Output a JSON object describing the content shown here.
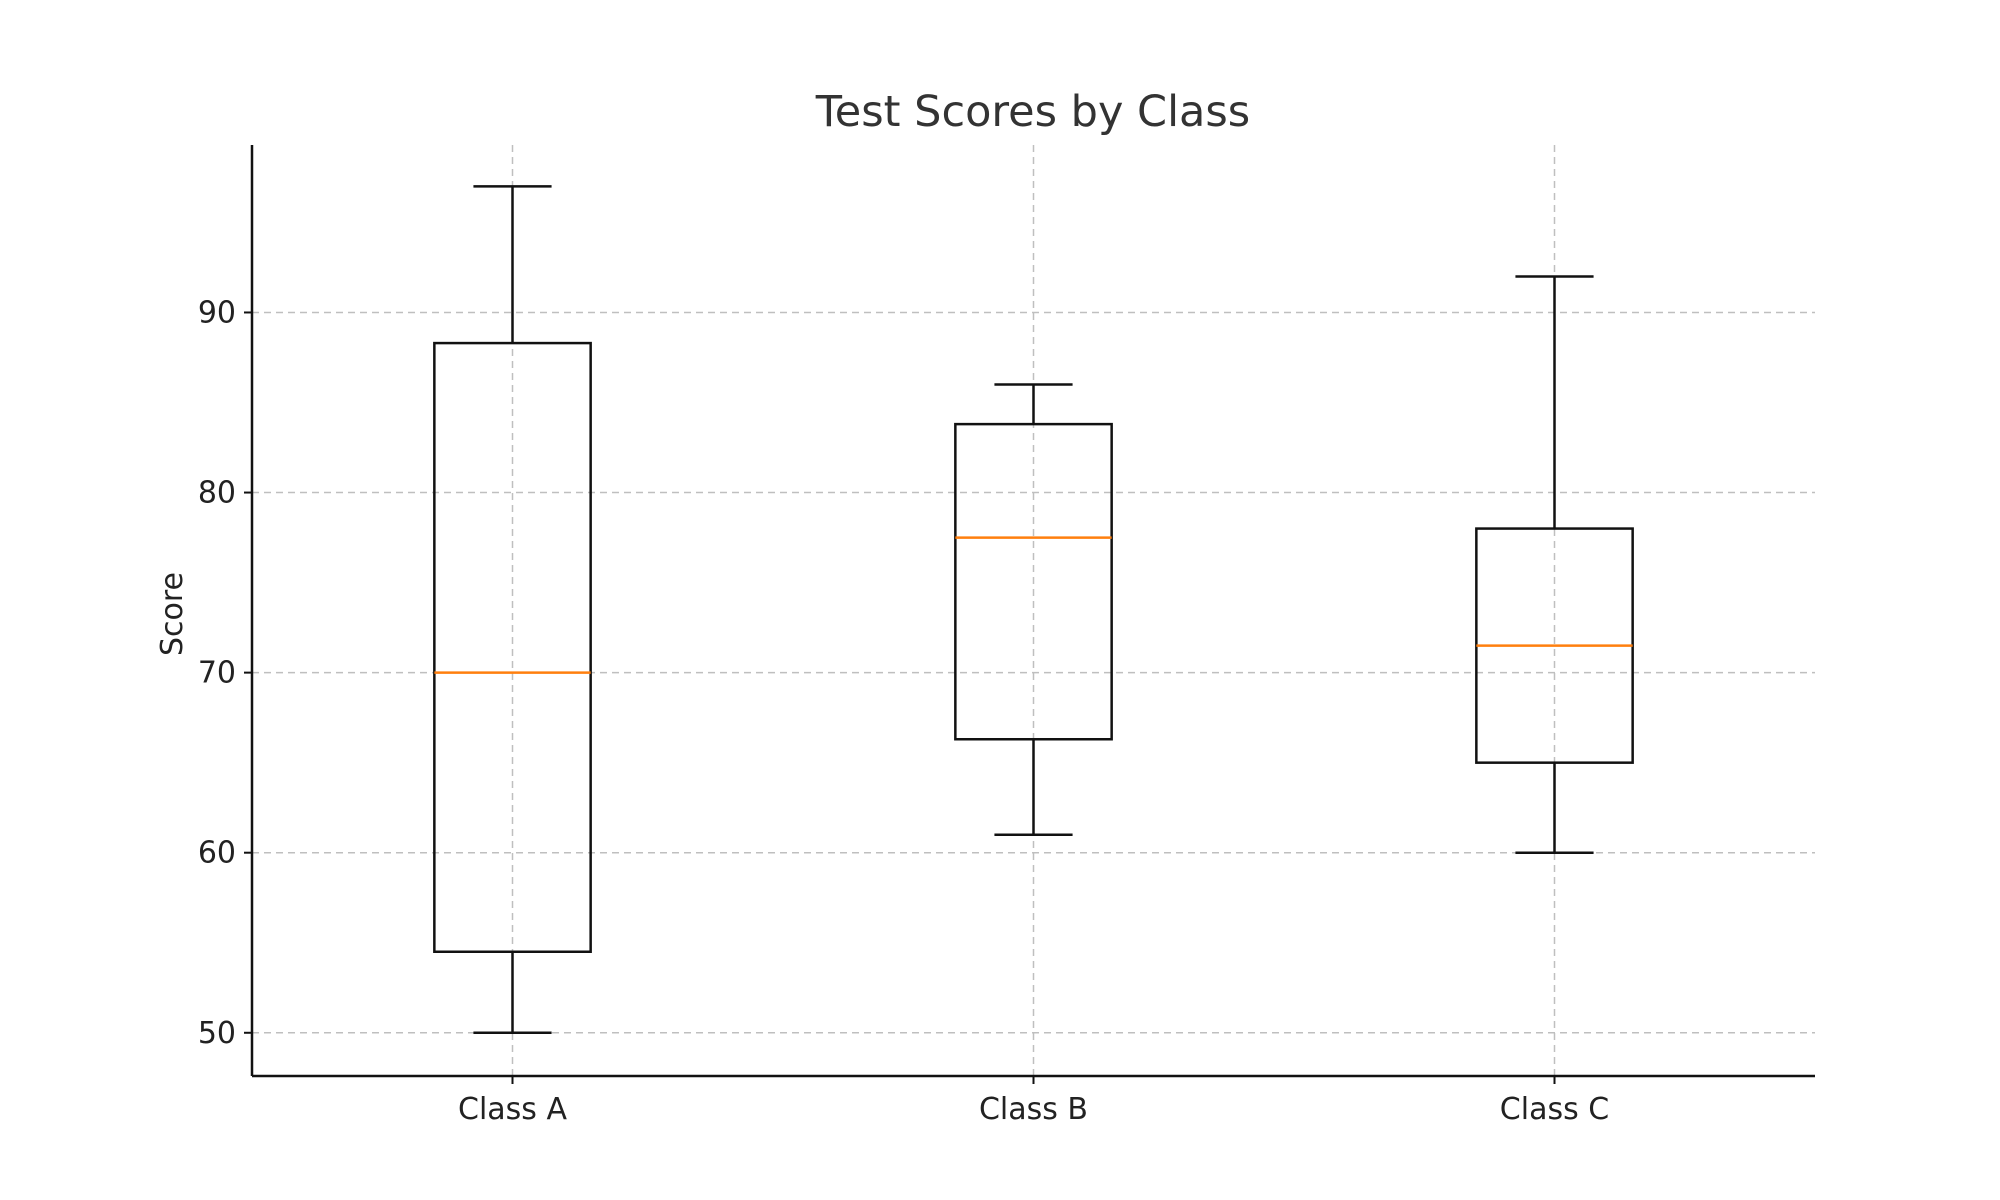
{
  "chart_data": {
    "type": "box",
    "title": "Test Scores by Class",
    "xlabel": "",
    "ylabel": "Score",
    "categories": [
      "Class A",
      "Class B",
      "Class C"
    ],
    "ylim": [
      47.6,
      99.3
    ],
    "yticks": [
      50,
      60,
      70,
      80,
      90
    ],
    "grid": true,
    "colors": {
      "box": "#111111",
      "median": "#ff7f0e",
      "grid": "#bfbfbf"
    },
    "series": [
      {
        "category": "Class A",
        "whisker_low": 50,
        "q1": 54.5,
        "median": 70,
        "q3": 88.3,
        "whisker_high": 97
      },
      {
        "category": "Class B",
        "whisker_low": 61,
        "q1": 66.3,
        "median": 77.5,
        "q3": 83.8,
        "whisker_high": 86
      },
      {
        "category": "Class C",
        "whisker_low": 60,
        "q1": 65,
        "median": 71.5,
        "q3": 78,
        "whisker_high": 92
      }
    ]
  }
}
